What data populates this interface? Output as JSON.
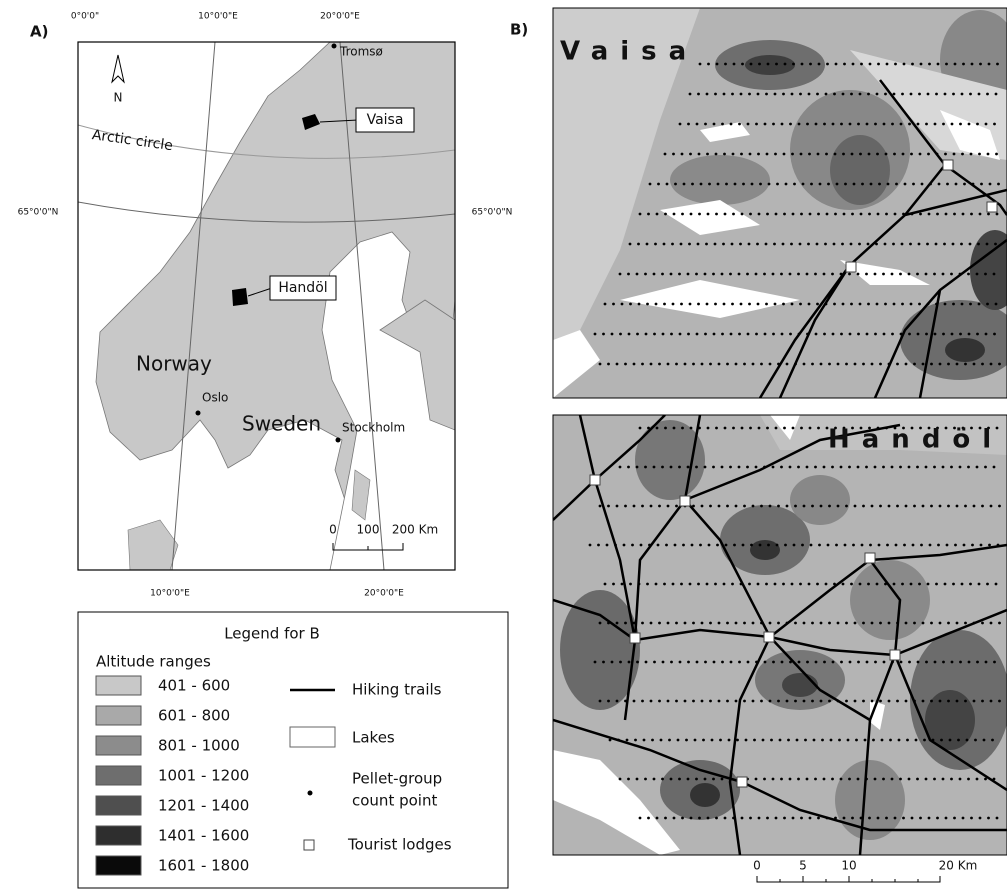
{
  "panel_a": {
    "label": "A)",
    "graticule": {
      "top_0": "0°0'0\"",
      "top_10": "10°0'0\"E",
      "top_20": "20°0'0\"E",
      "left_65": "65°0'0\"N",
      "right_65": "65°0'0\"N",
      "bottom_10": "10°0'0\"E",
      "bottom_20": "20°0'0\"E"
    },
    "north": "N",
    "arctic_circle": "Arctic circle",
    "places": {
      "tromso": "Tromsø",
      "vaisa": "Vaisa",
      "handol": "Handöl",
      "norway": "Norway",
      "oslo": "Oslo",
      "sweden": "Sweden",
      "stockholm": "Stockholm"
    },
    "scale": [
      "0",
      "100",
      "200 Km"
    ]
  },
  "legend": {
    "title": "Legend for B",
    "altitude_title": "Altitude ranges",
    "altitude_ranges": [
      "401 - 600",
      "601 - 800",
      "801 - 1000",
      "1001 - 1200",
      "1201 - 1400",
      "1401 - 1600",
      "1601 - 1800"
    ],
    "hiking_trails": "Hiking trails",
    "lakes": "Lakes",
    "pellet_line1": "Pellet-group",
    "pellet_line2": "count point",
    "tourist_lodges": "Tourist lodges"
  },
  "panel_b": {
    "label": "B)",
    "vaisa": "Vaisa",
    "handol": "Handöl",
    "scale": [
      "0",
      "5",
      "10",
      "20 Km"
    ]
  }
}
